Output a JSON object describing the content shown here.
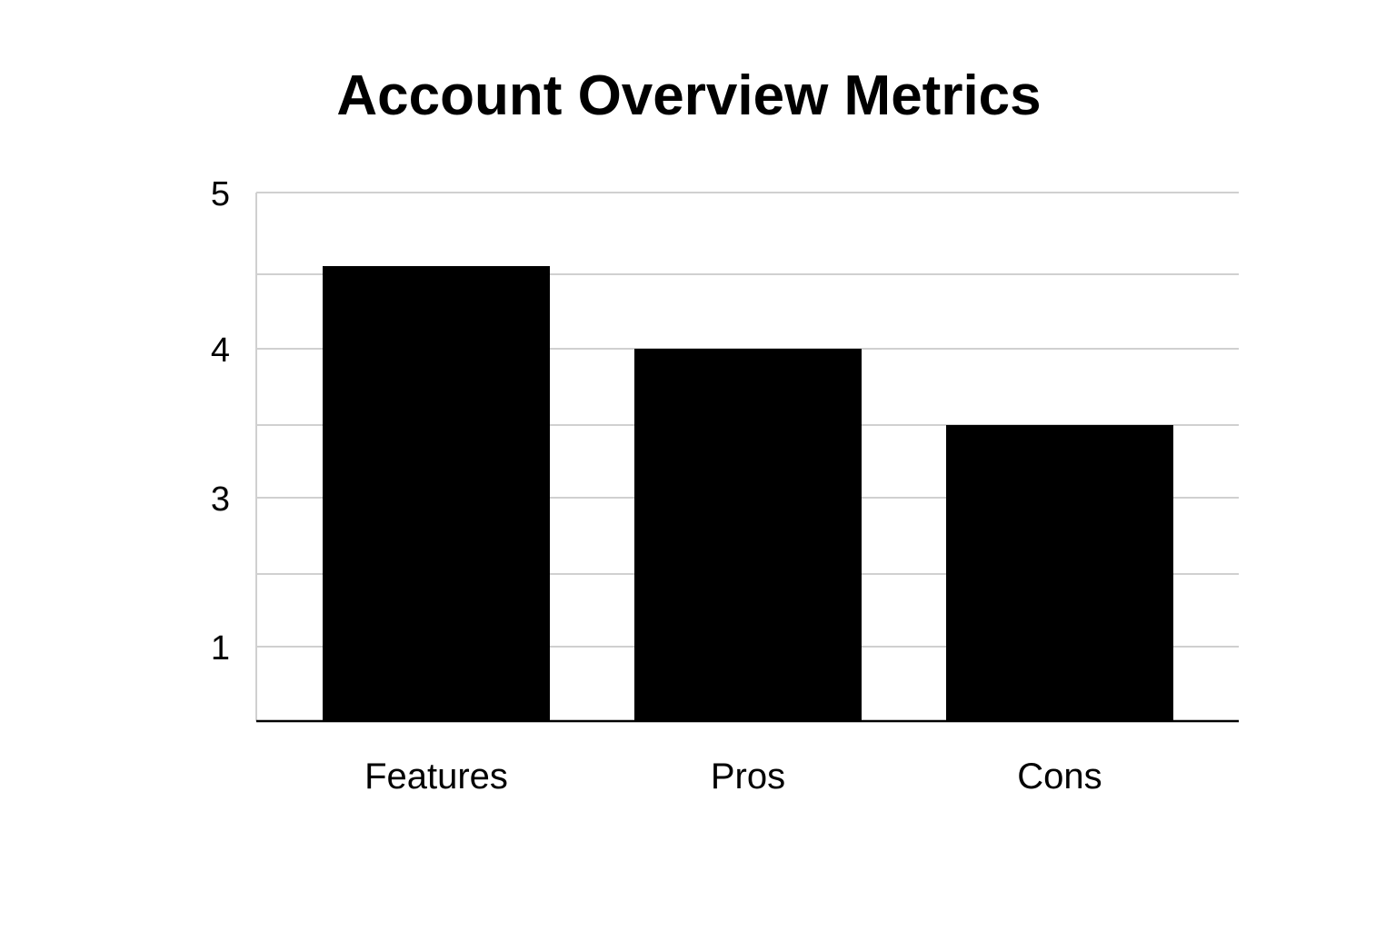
{
  "chart_data": {
    "type": "bar",
    "title": "Account Overview Metrics",
    "categories": [
      "Features",
      "Pros",
      "Cons"
    ],
    "values": [
      4.55,
      4.0,
      3.5
    ],
    "xlabel": "",
    "ylabel": "",
    "ylim": [
      0,
      5
    ],
    "y_tick_labels": [
      "5",
      "4",
      "3",
      "1"
    ],
    "gridlines": [
      5,
      4.5,
      4,
      3.5,
      3,
      2,
      1
    ],
    "grid": true,
    "bar_color": "#000000",
    "grid_color": "#d0d0d0"
  }
}
